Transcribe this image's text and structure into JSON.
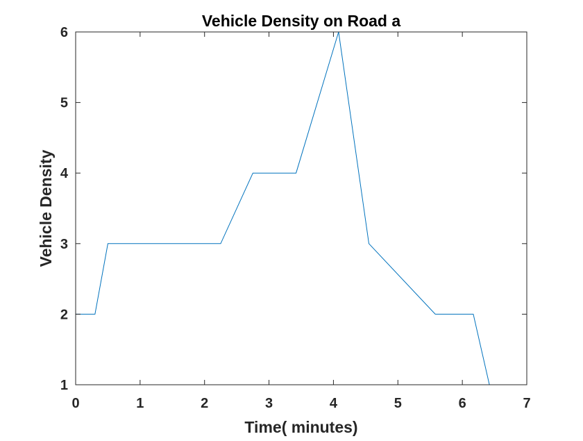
{
  "chart_data": {
    "type": "line",
    "title": "Vehicle Density on Road a",
    "xlabel": "Time( minutes)",
    "ylabel": "Vehicle Density",
    "xlim": [
      0,
      7
    ],
    "ylim": [
      1,
      6
    ],
    "xticks": [
      "0",
      "1",
      "2",
      "3",
      "4",
      "5",
      "6",
      "7"
    ],
    "yticks": [
      "1",
      "2",
      "3",
      "4",
      "5",
      "6"
    ],
    "grid": false,
    "legend": "none",
    "series": [
      {
        "color": "#0072BD",
        "x": [
          0,
          0.3,
          0.5,
          2.25,
          2.75,
          3.42,
          4.08,
          4.55,
          5.58,
          6.17,
          6.42
        ],
        "y": [
          2,
          2,
          3,
          3,
          4,
          4,
          6,
          3,
          2,
          2,
          1
        ]
      }
    ]
  }
}
